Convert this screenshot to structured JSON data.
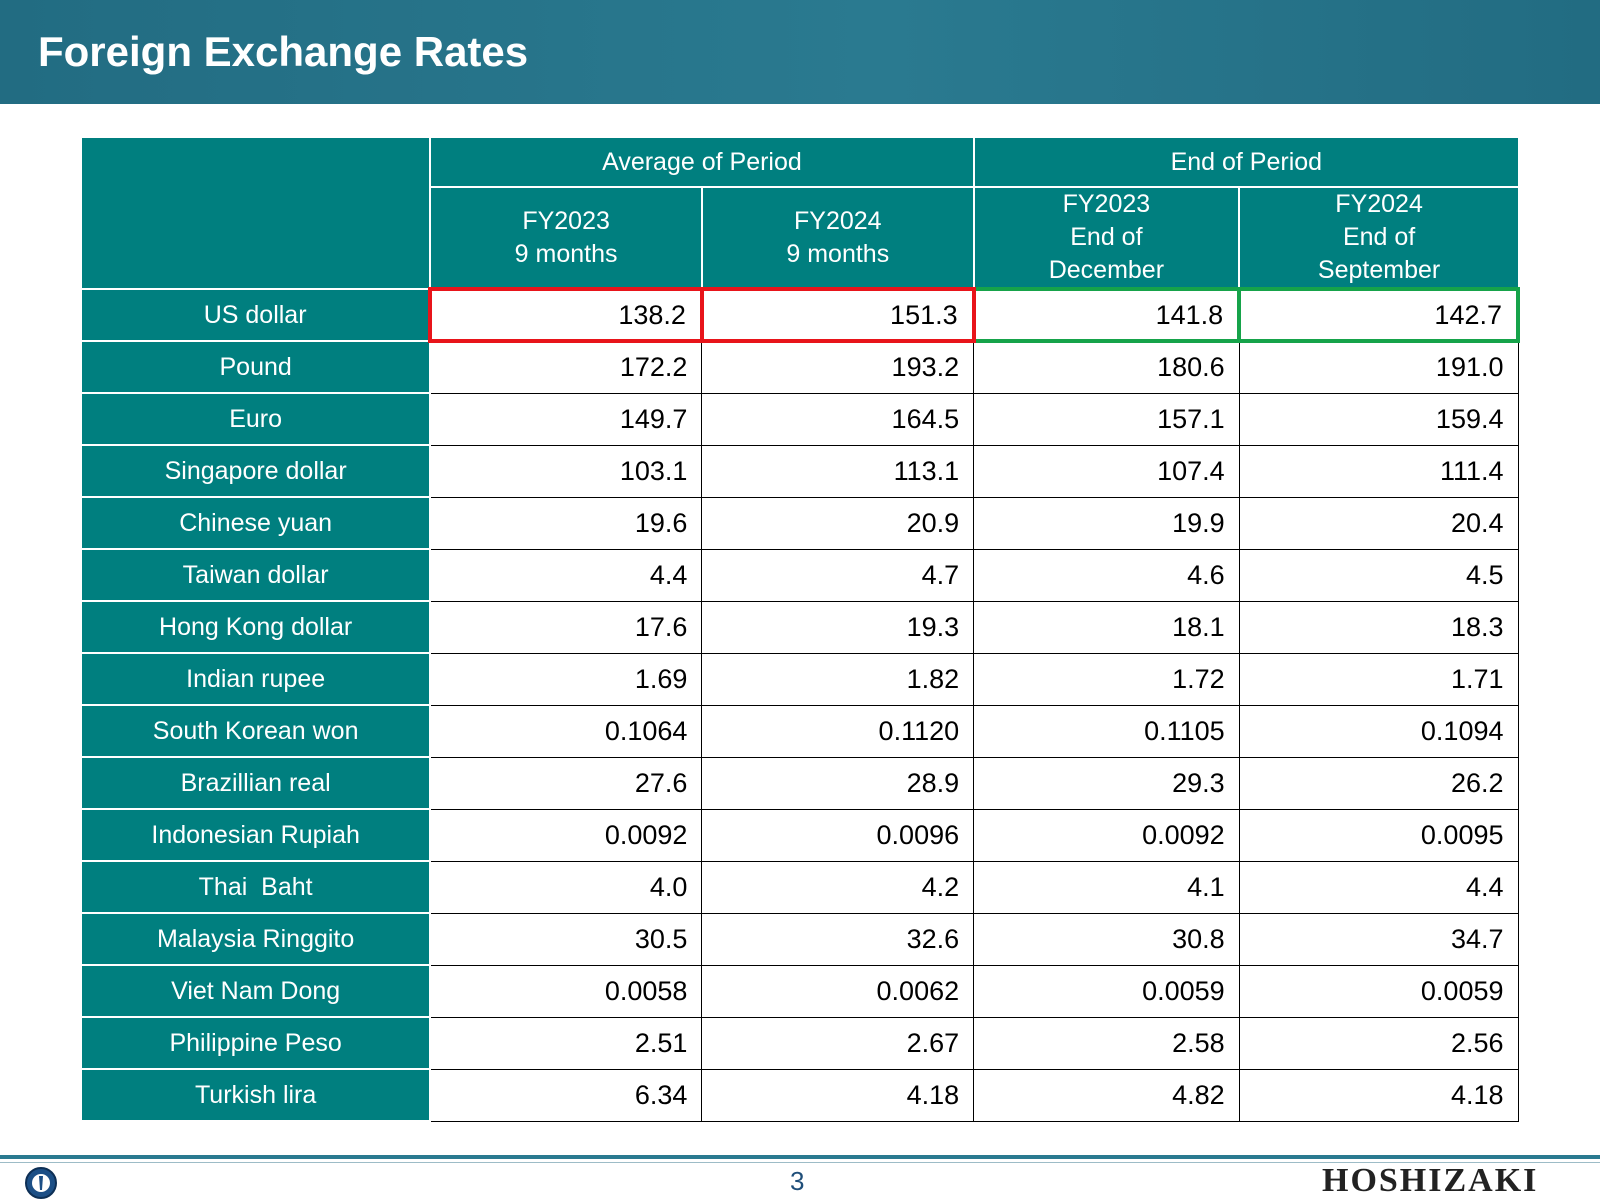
{
  "header": {
    "title": "Foreign Exchange Rates"
  },
  "table": {
    "groups": [
      {
        "label": "Average of Period"
      },
      {
        "label": "End of Period"
      }
    ],
    "columns": [
      {
        "line1": "FY2023",
        "line2": "9 months",
        "line3": ""
      },
      {
        "line1": "FY2024",
        "line2": "9 months",
        "line3": ""
      },
      {
        "line1": "FY2023",
        "line2": "End of",
        "line3": "December"
      },
      {
        "line1": "FY2024",
        "line2": "End of",
        "line3": "September"
      }
    ],
    "rows": [
      {
        "currency": "US dollar",
        "values": [
          "138.2",
          "151.3",
          "141.8",
          "142.7"
        ]
      },
      {
        "currency": "Pound",
        "values": [
          "172.2",
          "193.2",
          "180.6",
          "191.0"
        ]
      },
      {
        "currency": "Euro",
        "values": [
          "149.7",
          "164.5",
          "157.1",
          "159.4"
        ]
      },
      {
        "currency": "Singapore dollar",
        "values": [
          "103.1",
          "113.1",
          "107.4",
          "111.4"
        ]
      },
      {
        "currency": "Chinese yuan",
        "values": [
          "19.6",
          "20.9",
          "19.9",
          "20.4"
        ]
      },
      {
        "currency": "Taiwan dollar",
        "values": [
          "4.4",
          "4.7",
          "4.6",
          "4.5"
        ]
      },
      {
        "currency": "Hong Kong dollar",
        "values": [
          "17.6",
          "19.3",
          "18.1",
          "18.3"
        ]
      },
      {
        "currency": "Indian rupee",
        "values": [
          "1.69",
          "1.82",
          "1.72",
          "1.71"
        ]
      },
      {
        "currency": "South Korean won",
        "values": [
          "0.1064",
          "0.1120",
          "0.1105",
          "0.1094"
        ]
      },
      {
        "currency": "Brazillian real",
        "values": [
          "27.6",
          "28.9",
          "29.3",
          "26.2"
        ]
      },
      {
        "currency": "Indonesian Rupiah",
        "values": [
          "0.0092",
          "0.0096",
          "0.0092",
          "0.0095"
        ]
      },
      {
        "currency": "Thai  Baht",
        "values": [
          "4.0",
          "4.2",
          "4.1",
          "4.4"
        ]
      },
      {
        "currency": "Malaysia Ringgito",
        "values": [
          "30.5",
          "32.6",
          "30.8",
          "34.7"
        ]
      },
      {
        "currency": "Viet Nam Dong",
        "values": [
          "0.0058",
          "0.0062",
          "0.0059",
          "0.0059"
        ]
      },
      {
        "currency": "Philippine Peso",
        "values": [
          "2.51",
          "2.67",
          "2.58",
          "2.56"
        ]
      },
      {
        "currency": "Turkish lira",
        "values": [
          "6.34",
          "4.18",
          "4.82",
          "4.18"
        ]
      }
    ],
    "highlight_colors": {
      "average": "#e8141a",
      "end": "#16a34a"
    }
  },
  "colors": {
    "header_bg": "#226c82",
    "table_header": "#007f7f"
  },
  "footer": {
    "page_number": "3",
    "brand": "HOSHIZAKI"
  }
}
